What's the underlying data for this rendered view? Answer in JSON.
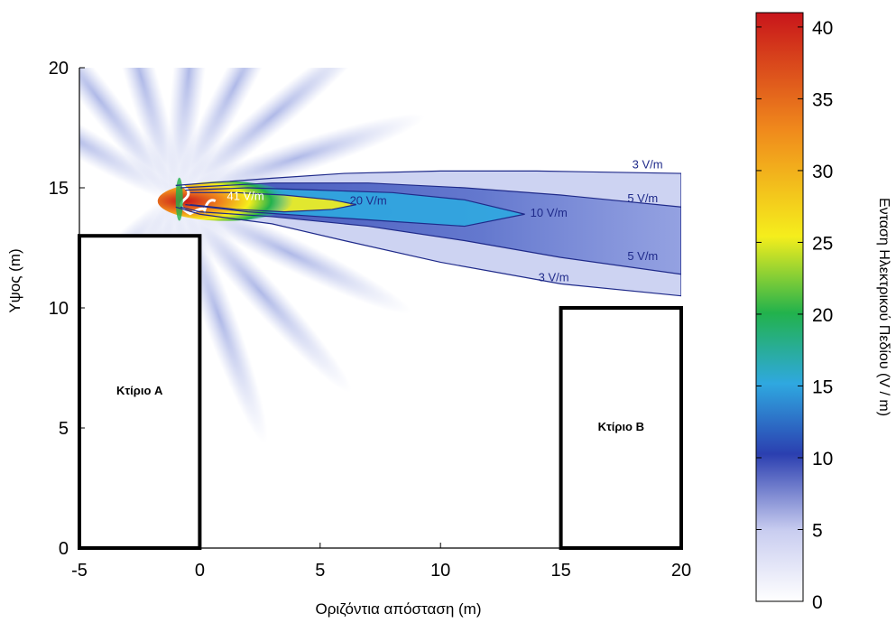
{
  "chart_data": {
    "type": "heatmap",
    "title": "",
    "xlabel": "Οριζόντια απόσταση (m)",
    "ylabel": "Υψος (m)",
    "xlim": [
      -5,
      20
    ],
    "ylim": [
      0,
      20
    ],
    "x_ticks": [
      -5,
      0,
      5,
      10,
      15,
      20
    ],
    "y_ticks": [
      0,
      5,
      10,
      15,
      20
    ],
    "colorbar": {
      "label": "Ενταση Ηλεκτρικού Πεδίου (V / m)",
      "range": [
        0,
        41
      ],
      "ticks": [
        0,
        5,
        10,
        15,
        20,
        25,
        30,
        35,
        40
      ],
      "colormap": [
        "#ffffff",
        "#2b3fb0",
        "#2fa8e0",
        "#22b24c",
        "#f5ee1c",
        "#f08a1c",
        "#c8151b"
      ]
    },
    "source": {
      "x": -1,
      "y": 14.6,
      "peak_field": 41
    },
    "buildings": [
      {
        "label": "Κτίριο A",
        "x": [
          -5,
          0
        ],
        "y": [
          0,
          13
        ]
      },
      {
        "label": "Κτίριο B",
        "x": [
          15,
          20
        ],
        "y": [
          0,
          10
        ]
      }
    ],
    "contour_labels": [
      {
        "text": "41 V/m",
        "x": 1.9,
        "y": 14.5
      },
      {
        "text": "20 V/m",
        "x": 7.0,
        "y": 14.3
      },
      {
        "text": "10 V/m",
        "x": 14.5,
        "y": 13.8
      },
      {
        "text": "3 V/m",
        "x": 18.6,
        "y": 15.8
      },
      {
        "text": "5 V/m",
        "x": 18.4,
        "y": 14.4
      },
      {
        "text": "5 V/m",
        "x": 18.4,
        "y": 12.0
      },
      {
        "text": "3 V/m",
        "x": 14.7,
        "y": 11.1
      }
    ],
    "contours": [
      {
        "level": 3,
        "points": [
          [
            -1,
            15.1
          ],
          [
            3,
            15.4
          ],
          [
            6,
            15.6
          ],
          [
            10,
            15.7
          ],
          [
            14,
            15.7
          ],
          [
            20,
            15.6
          ],
          [
            20,
            10.5
          ],
          [
            15,
            11.0
          ],
          [
            10,
            11.9
          ],
          [
            6,
            12.8
          ],
          [
            3,
            13.5
          ],
          [
            0,
            13.9
          ],
          [
            -1,
            14.2
          ]
        ]
      },
      {
        "level": 5,
        "points": [
          [
            -0.8,
            15.0
          ],
          [
            3,
            15.2
          ],
          [
            7,
            15.2
          ],
          [
            11,
            15.0
          ],
          [
            15,
            14.7
          ],
          [
            20,
            14.2
          ],
          [
            20,
            11.4
          ],
          [
            15,
            12.1
          ],
          [
            11,
            12.8
          ],
          [
            7,
            13.4
          ],
          [
            3,
            13.8
          ],
          [
            0,
            14.0
          ],
          [
            -0.8,
            14.2
          ]
        ]
      },
      {
        "level": 10,
        "points": [
          [
            -0.6,
            14.9
          ],
          [
            2,
            15.0
          ],
          [
            5,
            14.9
          ],
          [
            8,
            14.8
          ],
          [
            11,
            14.5
          ],
          [
            13.5,
            13.9
          ],
          [
            11,
            13.4
          ],
          [
            8,
            13.6
          ],
          [
            5,
            13.8
          ],
          [
            2,
            14.0
          ],
          [
            -0.6,
            14.3
          ]
        ]
      },
      {
        "level": 20,
        "points": [
          [
            -0.4,
            14.8
          ],
          [
            1.5,
            14.8
          ],
          [
            3.5,
            14.7
          ],
          [
            5.5,
            14.5
          ],
          [
            6.5,
            14.3
          ],
          [
            5.5,
            14.1
          ],
          [
            3.5,
            14.0
          ],
          [
            1.5,
            14.1
          ],
          [
            -0.4,
            14.3
          ]
        ]
      }
    ]
  }
}
